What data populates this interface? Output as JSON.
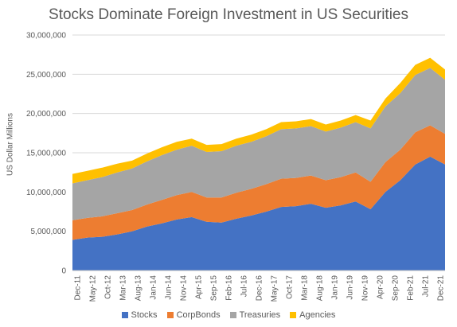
{
  "chart_data": {
    "type": "area",
    "stacked": true,
    "title": "Stocks Dominate Foreign Investment in US Securities",
    "ylabel": "US Dollar Millions",
    "xlabel": "",
    "ylim": [
      0,
      30000000
    ],
    "y_ticks": [
      "0",
      "5,000,000",
      "10,000,000",
      "15,000,000",
      "20,000,000",
      "25,000,000",
      "30,000,000"
    ],
    "y_tick_values": [
      0,
      5000000,
      10000000,
      15000000,
      20000000,
      25000000,
      30000000
    ],
    "x_ticks": [
      "Dec-11",
      "May-12",
      "Oct-12",
      "Mar-13",
      "Aug-13",
      "Jan-14",
      "Jun-14",
      "Nov-14",
      "Apr-15",
      "Sep-15",
      "Feb-16",
      "Jul-16",
      "Dec-16",
      "May-17",
      "Oct-17",
      "Mar-18",
      "Aug-18",
      "Jan-19",
      "Jun-19",
      "Nov-19",
      "Apr-20",
      "Sep-20",
      "Feb-21",
      "Jul-21",
      "Dec-21"
    ],
    "grid": "horizontal",
    "legend_position": "bottom",
    "series": [
      {
        "name": "Stocks",
        "color": "#4472C4",
        "values": [
          3900000,
          4200000,
          4300000,
          4600000,
          5000000,
          5600000,
          6000000,
          6500000,
          6800000,
          6200000,
          6100000,
          6600000,
          7000000,
          7500000,
          8100000,
          8200000,
          8500000,
          8000000,
          8300000,
          8800000,
          7800000,
          10000000,
          11500000,
          13500000,
          14500000,
          13500000
        ]
      },
      {
        "name": "CorpBonds",
        "color": "#ED7D31",
        "values": [
          2500000,
          2500000,
          2600000,
          2700000,
          2700000,
          2800000,
          3000000,
          3100000,
          3200000,
          3100000,
          3200000,
          3300000,
          3400000,
          3500000,
          3600000,
          3600000,
          3600000,
          3500000,
          3600000,
          3700000,
          3500000,
          3800000,
          3900000,
          4100000,
          4000000,
          3900000
        ]
      },
      {
        "name": "Treasuries",
        "color": "#A5A5A5",
        "values": [
          4700000,
          4800000,
          5000000,
          5200000,
          5300000,
          5500000,
          5700000,
          5800000,
          5900000,
          5800000,
          5900000,
          6000000,
          6000000,
          6100000,
          6300000,
          6300000,
          6300000,
          6200000,
          6300000,
          6400000,
          6800000,
          7100000,
          7200000,
          7300000,
          7300000,
          6900000
        ]
      },
      {
        "name": "Agencies",
        "color": "#FFC000",
        "values": [
          1200000,
          1200000,
          1200000,
          1100000,
          1000000,
          1000000,
          1000000,
          1000000,
          900000,
          900000,
          900000,
          900000,
          900000,
          900000,
          900000,
          900000,
          900000,
          900000,
          900000,
          900000,
          1000000,
          1000000,
          1300000,
          1300000,
          1300000,
          1300000
        ]
      }
    ]
  }
}
